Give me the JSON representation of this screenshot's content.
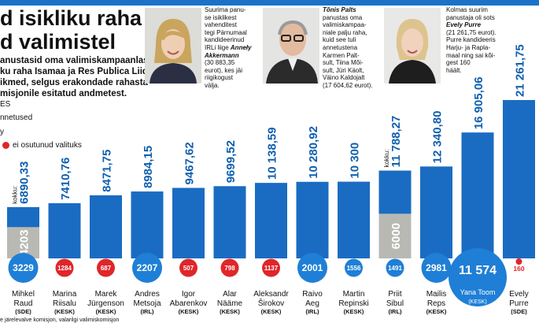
{
  "headline": {
    "line1": "d isikliku raha",
    "line2": "d valimistel"
  },
  "lead": [
    "anustasid oma valimiskampaanlasse",
    "ku raha Isamaa ja Res Publica Liidu",
    "ikmed, selgus erakondade rahasta-",
    "misjonile esitatud andmetest."
  ],
  "legend": {
    "frag1": "ES",
    "frag2": "nnetused",
    "frag3": "y",
    "red_label": "ei osutunud valituks",
    "colors": {
      "blue": "#1a6cc2",
      "gray": "#b9b9b4",
      "red": "#e0262a"
    }
  },
  "callouts": [
    {
      "lines": [
        [
          {
            "t": "Suurima panu-"
          }
        ],
        [
          {
            "t": "se isiklikest"
          }
        ],
        [
          {
            "t": "vahenditest"
          }
        ],
        [
          {
            "t": "tegi Pärnumaal"
          }
        ],
        [
          {
            "t": "kandideerinud"
          }
        ],
        [
          {
            "t": "IRLi liige "
          },
          {
            "t": "Anneły",
            "em": true
          }
        ],
        [
          {
            "t": "Akkermann",
            "em": true
          }
        ],
        [
          {
            "t": "(30 883,35"
          }
        ],
        [
          {
            "t": "eurot), kes jäi"
          }
        ],
        [
          {
            "t": "riigikogust"
          }
        ],
        [
          {
            "t": "välja."
          }
        ]
      ]
    },
    {
      "lines": [
        [
          {
            "t": "Tõnis Palts",
            "em": true
          }
        ],
        [
          {
            "t": "panustas oma"
          }
        ],
        [
          {
            "t": "valimiskampaa-"
          }
        ],
        [
          {
            "t": "niale palju raha,"
          }
        ],
        [
          {
            "t": "kuid see tuli"
          }
        ],
        [
          {
            "t": "annetustena"
          }
        ],
        [
          {
            "t": "Karmen Palt-"
          }
        ],
        [
          {
            "t": "sult, Tiina Mõi-"
          }
        ],
        [
          {
            "t": "sult, Jüri Käolt,"
          }
        ],
        [
          {
            "t": "Väino Kaldojalt"
          }
        ],
        [
          {
            "t": "(17 604,62 eurot)."
          }
        ]
      ]
    },
    {
      "lines": [
        [
          {
            "t": "Kolmas suurim"
          }
        ],
        [
          {
            "t": "panustaja oli sots"
          }
        ],
        [
          {
            "t": "Evely Purre",
            "em": true
          }
        ],
        [
          {
            "t": "(21 261,75 eurot)."
          }
        ],
        [
          {
            "t": "Purre kandideeris"
          }
        ],
        [
          {
            "t": "Harju- ja Rapla-"
          }
        ],
        [
          {
            "t": "maal ning sai kõi-"
          }
        ],
        [
          {
            "t": "gest 160"
          }
        ],
        [
          {
            "t": "häält."
          }
        ]
      ]
    }
  ],
  "chart_data": {
    "type": "bar",
    "unit": "eurot",
    "ylim": [
      0,
      22000
    ],
    "total_prefix": "kokku:",
    "candidates": [
      {
        "first": "Mihkel",
        "last": "Raud",
        "party": "(SDE)",
        "total": 6890.33,
        "total_label": "6890,33",
        "gray": 4203,
        "gray_label": "4203",
        "votes": 3229,
        "votes_label": "3229",
        "elected": true,
        "size": "md",
        "total_prefix": true
      },
      {
        "first": "Marina",
        "last": "Riisalu",
        "party": "(KESK)",
        "total": 7410.76,
        "total_label": "7410,76",
        "votes": 1284,
        "votes_label": "1284",
        "elected": false,
        "size": "sm"
      },
      {
        "first": "Marek",
        "last": "Jürgenson",
        "party": "(KESK)",
        "total": 8471.75,
        "total_label": "8471,75",
        "votes": 687,
        "votes_label": "687",
        "elected": false,
        "size": "sm"
      },
      {
        "first": "Andres",
        "last": "Metsoja",
        "party": "(IRL)",
        "total": 8984.15,
        "total_label": "8984,15",
        "votes": 2207,
        "votes_label": "2207",
        "elected": true,
        "size": "md"
      },
      {
        "first": "Igor",
        "last": "Abarenkov",
        "party": "(KESK)",
        "total": 9467.62,
        "total_label": "9467,62",
        "votes": 507,
        "votes_label": "507",
        "elected": false,
        "size": "sm"
      },
      {
        "first": "Alar",
        "last": "Nääme",
        "party": "(KESK)",
        "total": 9699.52,
        "total_label": "9699,52",
        "votes": 798,
        "votes_label": "798",
        "elected": false,
        "size": "sm"
      },
      {
        "first": "Aleksandr",
        "last": "Širokov",
        "party": "(KESK)",
        "total": 10138.59,
        "total_label": "10 138,59",
        "votes": 1137,
        "votes_label": "1137",
        "elected": false,
        "size": "sm"
      },
      {
        "first": "Raivo",
        "last": "Aeg",
        "party": "(IRL)",
        "total": 10280.92,
        "total_label": "10 280,92",
        "votes": 2001,
        "votes_label": "2001",
        "elected": true,
        "size": "md"
      },
      {
        "first": "Martin",
        "last": "Repinski",
        "party": "(KESK)",
        "total": 10300,
        "total_label": "10 300",
        "votes": 1556,
        "votes_label": "1556",
        "elected": true,
        "size": "sm"
      },
      {
        "first": "Priit",
        "last": "Sibul",
        "party": "(IRL)",
        "total": 11788.27,
        "total_label": "11 788,27",
        "gray": 6000,
        "gray_label": "6000",
        "votes": 1491,
        "votes_label": "1491",
        "elected": true,
        "size": "sm",
        "total_prefix": true
      },
      {
        "first": "Mailis",
        "last": "Reps",
        "party": "(KESK)",
        "total": 12340.8,
        "total_label": "12 340,80",
        "votes": 2981,
        "votes_label": "2981",
        "elected": true,
        "size": "md"
      },
      {
        "first": "Yana Toom",
        "last": "",
        "party": "(KESK)",
        "total": 16905.06,
        "total_label": "16 905,06",
        "votes": 11574,
        "votes_label": "11 574",
        "elected": true,
        "size": "lg",
        "inside": true
      },
      {
        "first": "Evely",
        "last": "Purre",
        "party": "(SDE)",
        "total": 21261.75,
        "total_label": "21 261,75",
        "votes": 160,
        "votes_label": "160",
        "elected": false,
        "size": "dot"
      }
    ]
  },
  "source": "e järelevalve komisjon, valarilgi valimiskomisjon"
}
